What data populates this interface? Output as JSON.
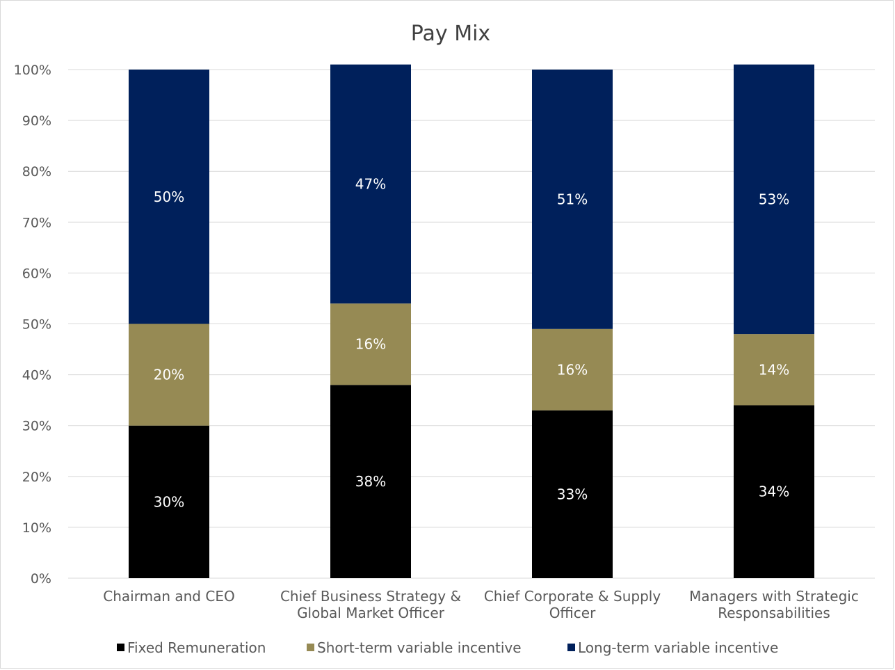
{
  "chart_data": {
    "type": "bar",
    "stacked": true,
    "title": "Pay Mix",
    "categories": [
      [
        "Chairman and CEO"
      ],
      [
        "Chief Business Strategy &",
        "Global Market Officer"
      ],
      [
        "Chief Corporate & Supply",
        "Officer"
      ],
      [
        "Managers with Strategic",
        "Responsabilities"
      ]
    ],
    "series": [
      {
        "name": "Fixed Remuneration",
        "color": "#000000",
        "values": [
          30,
          38,
          33,
          34
        ],
        "labels": [
          "30%",
          "38%",
          "33%",
          "34%"
        ]
      },
      {
        "name": "Short-term variable incentive",
        "color": "#968a54",
        "values": [
          20,
          16,
          16,
          14
        ],
        "labels": [
          "20%",
          "16%",
          "16%",
          "14%"
        ]
      },
      {
        "name": "Long-term variable incentive",
        "color": "#00205b",
        "values": [
          50,
          47,
          51,
          53
        ],
        "labels": [
          "50%",
          "47%",
          "51%",
          "53%"
        ]
      }
    ],
    "ylim": [
      0,
      100
    ],
    "yticks": [
      "0%",
      "10%",
      "20%",
      "30%",
      "40%",
      "50%",
      "60%",
      "70%",
      "80%",
      "90%",
      "100%"
    ],
    "grid": true,
    "legend": "bottom"
  }
}
